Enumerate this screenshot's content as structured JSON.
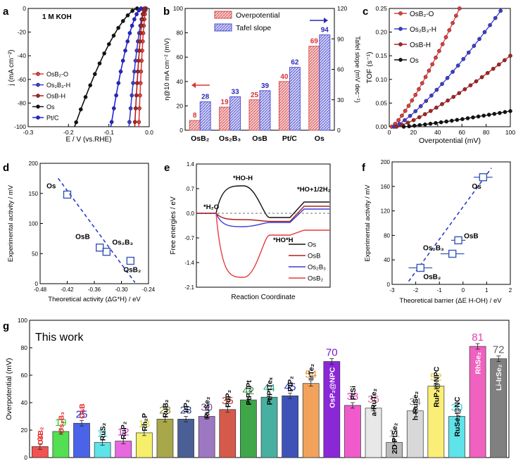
{
  "colors": {
    "osb2o": "#e83a3a",
    "os2b3h": "#3b3bd9",
    "osbh": "#b0201f",
    "os": "#111111",
    "ptc": "#2222dd",
    "over_fill": "#f5c9c9",
    "over_edge": "#d44a4a",
    "tafel_fill": "#cfd0f3",
    "tafel_edge": "#4a4ad0",
    "square": "#3656b5",
    "dash": "#2b3cc6"
  },
  "chart_data": [
    {
      "id": "a",
      "panel_label": "a",
      "type": "line",
      "annotation": "1 M KOH",
      "xlabel": "E / V (vs.RHE)",
      "ylabel": "j (mA cm⁻²)",
      "xlim": [
        -0.3,
        0.0
      ],
      "ylim": [
        -100,
        0
      ],
      "xticks": [
        "-0.3",
        "-0.2",
        "-0.1",
        "0.0"
      ],
      "yticks": [
        "-100",
        "-80",
        "-60",
        "-40",
        "-20",
        "0"
      ],
      "legend": [
        {
          "name": "OsB₂-O",
          "color_key": "osb2o"
        },
        {
          "name": "Os₂B₃-H",
          "color_key": "os2b3h"
        },
        {
          "name": "OsB-H",
          "color_key": "osbh"
        },
        {
          "name": "Os",
          "color_key": "os"
        },
        {
          "name": "Pt/C",
          "color_key": "ptc"
        }
      ],
      "series": [
        {
          "name": "OsB₂-O",
          "color_key": "osb2o",
          "onset": -0.008,
          "e100": -0.026,
          "exp": 1.6
        },
        {
          "name": "Os₂B₃-H",
          "color_key": "os2b3h",
          "onset": -0.01,
          "e100": -0.05,
          "exp": 1.6
        },
        {
          "name": "OsB-H",
          "color_key": "osbh",
          "onset": -0.012,
          "e100": -0.036,
          "exp": 1.6
        },
        {
          "name": "Os",
          "color_key": "os",
          "onset": -0.03,
          "e100": -0.185,
          "exp": 1.5
        },
        {
          "name": "Pt/C",
          "color_key": "ptc",
          "onset": -0.02,
          "e100": -0.095,
          "exp": 1.6
        }
      ]
    },
    {
      "id": "b",
      "panel_label": "b",
      "type": "bar",
      "categories": [
        "OsB₂",
        "Os₂B₃",
        "OsB",
        "Pt/C",
        "Os"
      ],
      "ylabel": "η@10 mA cm⁻² (mV)",
      "y2label": "Tafel slope (mV dec⁻¹)",
      "ylim": [
        0,
        100
      ],
      "y2lim": [
        0,
        120
      ],
      "yticks": [
        "0",
        "20",
        "40",
        "60",
        "80",
        "100"
      ],
      "y2ticks": [
        "0",
        "30",
        "60",
        "90",
        "120"
      ],
      "legend": [
        "Overpotential",
        "Tafel slope"
      ],
      "series": [
        {
          "name": "Overpotential",
          "axis": "left",
          "values": [
            8,
            19,
            25,
            40,
            69
          ],
          "labels": [
            "8",
            "19",
            "25",
            "40",
            "69"
          ]
        },
        {
          "name": "Tafel slope",
          "axis": "right",
          "values": [
            28,
            33,
            39,
            62,
            94
          ],
          "labels": [
            "28",
            "33",
            "39",
            "62",
            "94"
          ]
        }
      ]
    },
    {
      "id": "c",
      "panel_label": "c",
      "type": "scatter",
      "xlabel": "Overpotential (mV)",
      "ylabel": "TOF (s⁻¹)",
      "xlim": [
        0,
        100
      ],
      "ylim": [
        0,
        0.25
      ],
      "xticks": [
        "0",
        "20",
        "40",
        "60",
        "80",
        "100"
      ],
      "yticks": [
        "0.00",
        "0.05",
        "0.10",
        "0.15",
        "0.20",
        "0.25"
      ],
      "legend": [
        {
          "name": "OsB₂-O",
          "color_key": "osb2o"
        },
        {
          "name": "Os₂B₃-H",
          "color_key": "os2b3h"
        },
        {
          "name": "OsB-H",
          "color_key": "osbh"
        },
        {
          "name": "Os",
          "color_key": "os"
        }
      ],
      "series": [
        {
          "name": "OsB₂-O",
          "color_key": "osb2o",
          "x0": 2,
          "xend": 58,
          "yend": 0.25,
          "exp": 1.25
        },
        {
          "name": "Os₂B₃-H",
          "color_key": "os2b3h",
          "x0": 4,
          "xend": 92,
          "yend": 0.245,
          "exp": 1.25
        },
        {
          "name": "OsB-H",
          "color_key": "osbh",
          "x0": 6,
          "xend": 100,
          "yend": 0.15,
          "exp": 1.25
        },
        {
          "name": "Os",
          "color_key": "os",
          "x0": 12,
          "xend": 100,
          "yend": 0.033,
          "exp": 1.2
        }
      ]
    },
    {
      "id": "d",
      "panel_label": "d",
      "type": "scatter",
      "xlabel": "Theoretical activity (ΔG*H) / eV",
      "ylabel": "Experimental activity / mV",
      "xlim": [
        -0.48,
        -0.24
      ],
      "ylim": [
        0,
        200
      ],
      "xticks": [
        "-0.48",
        "-0.42",
        "-0.36",
        "-0.30",
        "-0.24"
      ],
      "yticks": [
        "0",
        "50",
        "100",
        "150",
        "200"
      ],
      "points": [
        {
          "label": "Os",
          "x": -0.42,
          "y": 148
        },
        {
          "label": "OsB",
          "x": -0.348,
          "y": 60
        },
        {
          "label": "Os₂B₃",
          "x": -0.333,
          "y": 53
        },
        {
          "label": "OsB₂",
          "x": -0.28,
          "y": 38
        }
      ],
      "trend": {
        "x1": -0.44,
        "y1": 175,
        "x2": -0.27,
        "y2": 2
      }
    },
    {
      "id": "e",
      "panel_label": "e",
      "type": "line",
      "xlabel": "Reaction Coordinate",
      "ylabel": "Free energies / eV",
      "ylim": [
        -2.1,
        1.4
      ],
      "yticks": [
        "-2.1",
        "-1.4",
        "-0.7",
        "0.0",
        "0.7",
        "1.4"
      ],
      "annotations": [
        "*HO-H",
        "*H₂O",
        "*HO+1/2H₂",
        "*HO*H"
      ],
      "legend": [
        {
          "name": "Os",
          "color_key": "os"
        },
        {
          "name": "OsB",
          "color_key": "osbh"
        },
        {
          "name": "Os₂B₃",
          "color_key": "os2b3h"
        },
        {
          "name": "OsB₂",
          "color_key": "osb2o"
        }
      ],
      "series": [
        {
          "name": "Os",
          "color_key": "os",
          "ts": 0.78,
          "mid": -0.12,
          "final": 0.32
        },
        {
          "name": "OsB",
          "color_key": "osbh",
          "ts": -0.18,
          "mid": -0.23,
          "final": 0.2
        },
        {
          "name": "Os₂B₃",
          "color_key": "os2b3h",
          "ts": -0.38,
          "mid": -0.26,
          "final": 0.12
        },
        {
          "name": "OsB₂",
          "color_key": "osb2o",
          "ts": -1.82,
          "mid": -0.62,
          "final": -0.48
        }
      ]
    },
    {
      "id": "f",
      "panel_label": "f",
      "type": "scatter",
      "xlabel": "Theoretical  barrier (ΔE H-OH) / eV",
      "ylabel": "Experimental activity / mV",
      "xlim": [
        -3,
        2
      ],
      "ylim": [
        0,
        200
      ],
      "xticks": [
        "-3",
        "-2",
        "-1",
        "0",
        "1",
        "2"
      ],
      "yticks": [
        "0",
        "40",
        "80",
        "120",
        "160",
        "200"
      ],
      "points": [
        {
          "label": "Os",
          "x": 0.85,
          "y": 175,
          "xerr": 0.4
        },
        {
          "label": "OsB",
          "x": -0.2,
          "y": 72,
          "xerr": 0.3
        },
        {
          "label": "Os₂B₃",
          "x": -0.45,
          "y": 50,
          "xerr": 0.5
        },
        {
          "label": "OsB₂",
          "x": -1.8,
          "y": 27,
          "xerr": 0.5
        }
      ],
      "trend": {
        "x1": -2.3,
        "y1": 5,
        "x2": 1.2,
        "y2": 190
      }
    },
    {
      "id": "g",
      "panel_label": "g",
      "type": "bar",
      "annotation": "This work",
      "ylabel": "Overpotential (mV)",
      "ylim": [
        0,
        100
      ],
      "yticks": [
        "0",
        "20",
        "40",
        "60",
        "80",
        "100"
      ],
      "categories": [
        "OsB₂",
        "Os₂B₃",
        "OsB",
        "RuS₂",
        "RuP₂",
        "Rh₂P",
        "RuB₂",
        "IrP₂",
        "RuSe₂",
        "PdP₂",
        "PtP₂/Pt",
        "Pt/PtTeₓ",
        "PtP₂",
        "IrTe₂",
        "OsP₂@NPC",
        "PtSi",
        "a-RuTe₂",
        "2D PtSe₂",
        "h-RuSe₂",
        "RuP₂@NPC",
        "RuSe₂@NC",
        "RhSe₂",
        "Li-IrSe₂"
      ],
      "values": [
        8,
        19,
        25,
        11,
        12,
        18,
        28,
        28,
        30,
        35,
        42,
        44,
        45,
        54,
        70,
        38,
        36,
        11,
        34,
        52,
        30,
        81,
        72
      ],
      "value_labels": [
        "8",
        "19",
        "25",
        "11",
        "12",
        "18",
        "28",
        "28",
        "30",
        "35",
        "42",
        "44",
        "45",
        "54",
        "70",
        "38",
        "36",
        "11",
        "34",
        "52",
        "30",
        "81",
        "72"
      ],
      "errors": [
        2,
        2,
        2,
        2,
        2,
        2,
        2,
        2,
        2,
        2,
        2,
        2,
        2,
        2,
        2,
        2,
        2,
        2,
        2,
        2,
        2,
        2,
        2
      ],
      "bar_colors": [
        "#f25252",
        "#52e052",
        "#4a63e8",
        "#5de3e8",
        "#e868e0",
        "#f5ef6a",
        "#a8a84a",
        "#4a5f96",
        "#9e77c2",
        "#d65a4a",
        "#3fa64a",
        "#48b0a0",
        "#3e52b8",
        "#f2a25a",
        "#8a28d8",
        "#f05acb",
        "#e8e8e8",
        "#bcbcbc",
        "#d8d8d8",
        "#fbee77",
        "#5de3e8",
        "#f061c0",
        "#808080"
      ],
      "label_colors": [
        "#e82020",
        "#2ec82e",
        "#2233cc",
        "#2ad5e0",
        "#e030d8",
        "#e0d82a",
        "#8a8a2a",
        "#2a3f86",
        "#7a4faa",
        "#c03a2a",
        "#2a9a3a",
        "#2aa08a",
        "#2233aa",
        "#e0882a",
        "#7a18c8",
        "#e03ab8",
        "#d86aa0",
        "#9a9a9a",
        "#888888",
        "#e0c830",
        "#2ad5e0",
        "#e041b0",
        "#606060"
      ],
      "name_colors": [
        "#e82020",
        "#e82020",
        "#e82020",
        "#000000",
        "#000000",
        "#000000",
        "#000000",
        "#000000",
        "#000000",
        "#000000",
        "#000000",
        "#000000",
        "#000000",
        "#000000",
        "#ffffff",
        "#000000",
        "#000000",
        "#000000",
        "#000000",
        "#000000",
        "#000000",
        "#ffffff",
        "#ffffff"
      ]
    }
  ]
}
